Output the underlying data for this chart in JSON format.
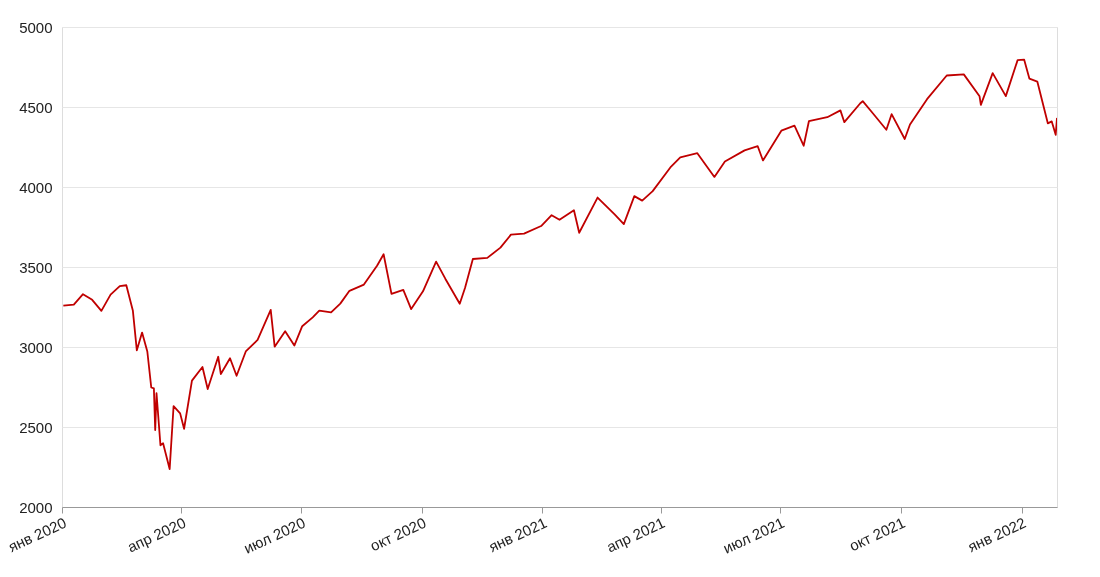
{
  "chart_data": {
    "type": "line",
    "grid": "y",
    "line_style": "solid",
    "marker": "none",
    "xlim": [
      "2020-01-01",
      "2022-01-28"
    ],
    "xticks": [
      {
        "value": "2020-01-01",
        "label": "янв 2020"
      },
      {
        "value": "2020-04-01",
        "label": "апр 2020"
      },
      {
        "value": "2020-07-01",
        "label": "июл 2020"
      },
      {
        "value": "2020-10-01",
        "label": "окт 2020"
      },
      {
        "value": "2021-01-01",
        "label": "янв 2021"
      },
      {
        "value": "2021-04-01",
        "label": "апр 2021"
      },
      {
        "value": "2021-07-01",
        "label": "июл 2021"
      },
      {
        "value": "2021-10-01",
        "label": "окт 2021"
      },
      {
        "value": "2022-01-01",
        "label": "янв 2022"
      }
    ],
    "ylim": [
      2000,
      5000
    ],
    "yticks": [
      2000,
      2500,
      3000,
      3500,
      4000,
      4500,
      5000
    ],
    "x": [
      "2020-01-02",
      "2020-01-10",
      "2020-01-17",
      "2020-01-24",
      "2020-01-31",
      "2020-02-07",
      "2020-02-14",
      "2020-02-19",
      "2020-02-24",
      "2020-02-27",
      "2020-03-02",
      "2020-03-06",
      "2020-03-09",
      "2020-03-11",
      "2020-03-12",
      "2020-03-13",
      "2020-03-16",
      "2020-03-18",
      "2020-03-23",
      "2020-03-26",
      "2020-03-31",
      "2020-04-03",
      "2020-04-09",
      "2020-04-17",
      "2020-04-21",
      "2020-04-29",
      "2020-05-01",
      "2020-05-08",
      "2020-05-13",
      "2020-05-20",
      "2020-05-29",
      "2020-06-08",
      "2020-06-11",
      "2020-06-19",
      "2020-06-26",
      "2020-07-02",
      "2020-07-10",
      "2020-07-15",
      "2020-07-24",
      "2020-07-31",
      "2020-08-07",
      "2020-08-18",
      "2020-08-28",
      "2020-09-02",
      "2020-09-08",
      "2020-09-17",
      "2020-09-23",
      "2020-10-02",
      "2020-10-12",
      "2020-10-19",
      "2020-10-30",
      "2020-11-03",
      "2020-11-09",
      "2020-11-20",
      "2020-11-30",
      "2020-12-08",
      "2020-12-18",
      "2020-12-31",
      "2021-01-08",
      "2021-01-14",
      "2021-01-25",
      "2021-01-29",
      "2021-02-12",
      "2021-02-25",
      "2021-03-04",
      "2021-03-12",
      "2021-03-18",
      "2021-03-26",
      "2021-04-09",
      "2021-04-16",
      "2021-04-29",
      "2021-05-12",
      "2021-05-20",
      "2021-06-04",
      "2021-06-14",
      "2021-06-18",
      "2021-07-02",
      "2021-07-12",
      "2021-07-19",
      "2021-07-23",
      "2021-08-06",
      "2021-08-16",
      "2021-08-19",
      "2021-08-31",
      "2021-09-02",
      "2021-09-10",
      "2021-09-20",
      "2021-09-24",
      "2021-10-04",
      "2021-10-08",
      "2021-10-21",
      "2021-11-05",
      "2021-11-18",
      "2021-11-30",
      "2021-12-01",
      "2021-12-10",
      "2021-12-20",
      "2021-12-29",
      "2022-01-03",
      "2022-01-07",
      "2022-01-13",
      "2022-01-21",
      "2022-01-24",
      "2022-01-27",
      "2022-01-28"
    ],
    "series": [
      {
        "color": "#c00000",
        "values": [
          3258,
          3265,
          3330,
          3295,
          3226,
          3327,
          3380,
          3386,
          3226,
          2979,
          3090,
          2972,
          2747,
          2741,
          2481,
          2711,
          2386,
          2398,
          2237,
          2630,
          2585,
          2489,
          2790,
          2875,
          2737,
          2939,
          2831,
          2930,
          2820,
          2972,
          3044,
          3232,
          3002,
          3098,
          3009,
          3130,
          3185,
          3227,
          3216,
          3271,
          3351,
          3390,
          3508,
          3580,
          3332,
          3357,
          3237,
          3348,
          3534,
          3427,
          3270,
          3369,
          3550,
          3557,
          3621,
          3702,
          3709,
          3756,
          3824,
          3795,
          3855,
          3714,
          3934,
          3829,
          3768,
          3943,
          3915,
          3974,
          4128,
          4185,
          4211,
          4063,
          4159,
          4229,
          4255,
          4166,
          4352,
          4384,
          4258,
          4411,
          4436,
          4479,
          4405,
          4522,
          4537,
          4458,
          4358,
          4455,
          4300,
          4391,
          4549,
          4697,
          4704,
          4567,
          4513,
          4712,
          4568,
          4793,
          4796,
          4677,
          4659,
          4398,
          4410,
          4326,
          4432
        ]
      }
    ]
  }
}
